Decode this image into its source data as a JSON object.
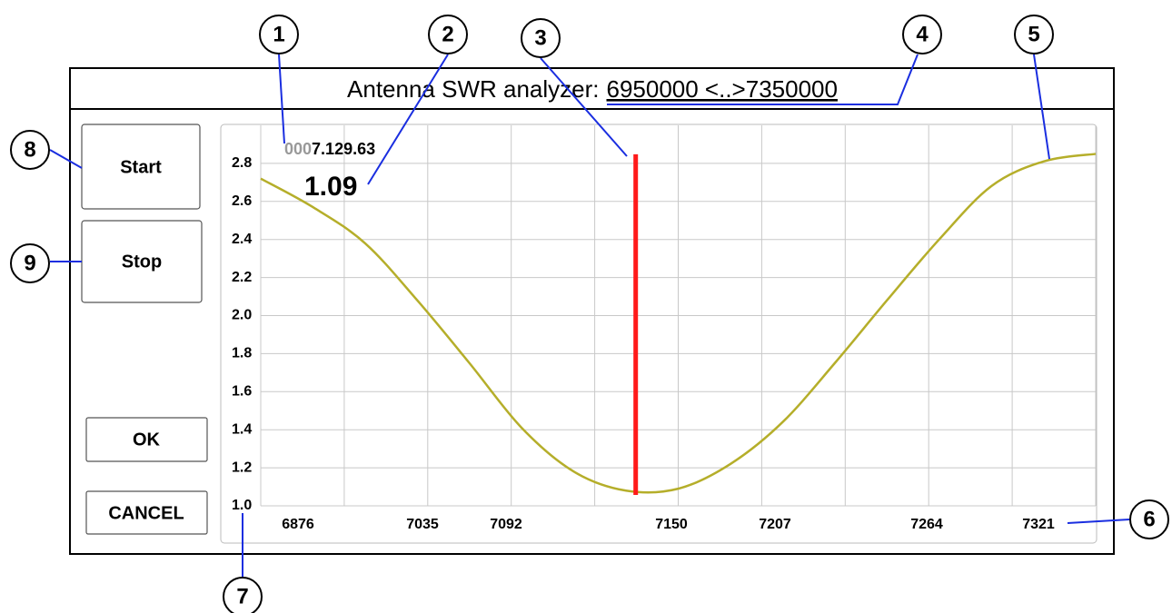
{
  "window": {
    "title": "Antenna SWR analyzer:",
    "range": "6950000 <..>7350000"
  },
  "buttons": [
    "Start",
    "Stop",
    "OK",
    "CANCEL"
  ],
  "readout": {
    "prefix": "000",
    "frequency": "7.129.63",
    "swr": "1.09"
  },
  "callouts": [
    "1",
    "2",
    "3",
    "4",
    "5",
    "6",
    "7",
    "8",
    "9"
  ],
  "chart_data": {
    "type": "line",
    "x": [
      6950,
      6975,
      7000,
      7025,
      7050,
      7075,
      7100,
      7125,
      7150,
      7175,
      7200,
      7225,
      7250,
      7275,
      7300,
      7325,
      7350
    ],
    "series": [
      {
        "color": "#b5ae2a",
        "values": [
          2.72,
          2.57,
          2.38,
          2.08,
          1.75,
          1.41,
          1.18,
          1.08,
          1.09,
          1.22,
          1.44,
          1.75,
          2.08,
          2.4,
          2.68,
          2.81,
          2.85
        ]
      }
    ],
    "cursor_x": 7129.63,
    "cursor_color": "#ff1a1a",
    "xlim": [
      6950,
      7350
    ],
    "xticks": [
      6950,
      6990,
      7030,
      7070,
      7110,
      7150,
      7190,
      7230,
      7270,
      7310,
      7350
    ],
    "x_tick_labels": [
      6876,
      7035,
      7092,
      7150,
      7207,
      7264,
      7321
    ],
    "ylim": [
      1,
      3
    ],
    "yticks": [
      {
        "value": 1,
        "label": "1.0"
      },
      1.2,
      1.4,
      1.6,
      1.8,
      {
        "value": 2,
        "label": "2.0"
      },
      2.2,
      2.4,
      2.6,
      2.8
    ],
    "grid": true
  }
}
